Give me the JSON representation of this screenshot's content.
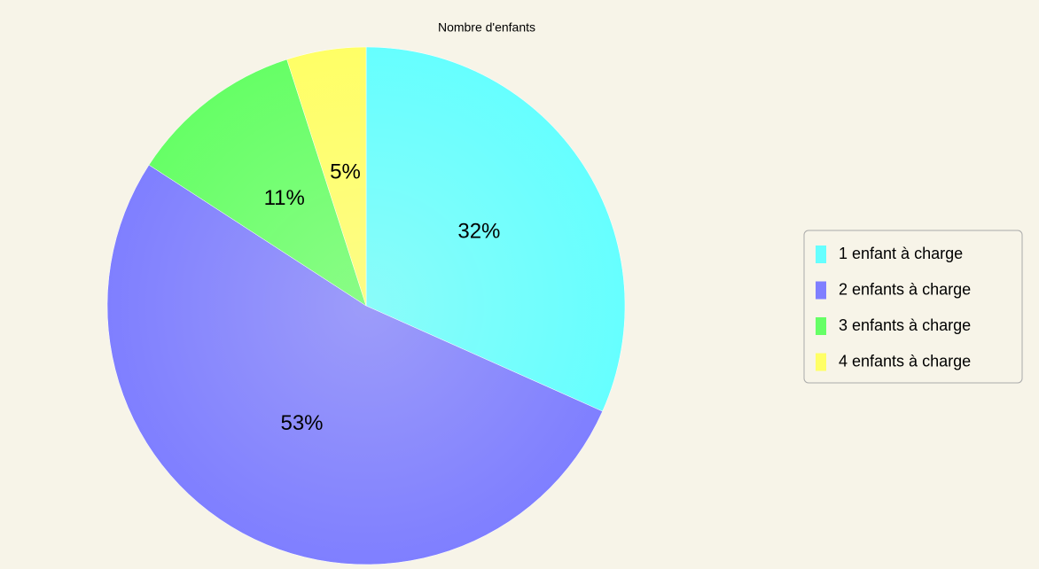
{
  "chart_data": {
    "type": "pie",
    "title": "Nombre d'enfants",
    "categories": [
      "1 enfant à charge",
      "2 enfants à charge",
      "3 enfants à charge",
      "4 enfants à charge"
    ],
    "values": [
      32,
      53,
      11,
      5
    ],
    "value_labels": [
      "32%",
      "53%",
      "11%",
      "5%"
    ],
    "colors": [
      "#66ffff",
      "#7f7fff",
      "#66ff66",
      "#ffff66"
    ],
    "legend": "right"
  }
}
